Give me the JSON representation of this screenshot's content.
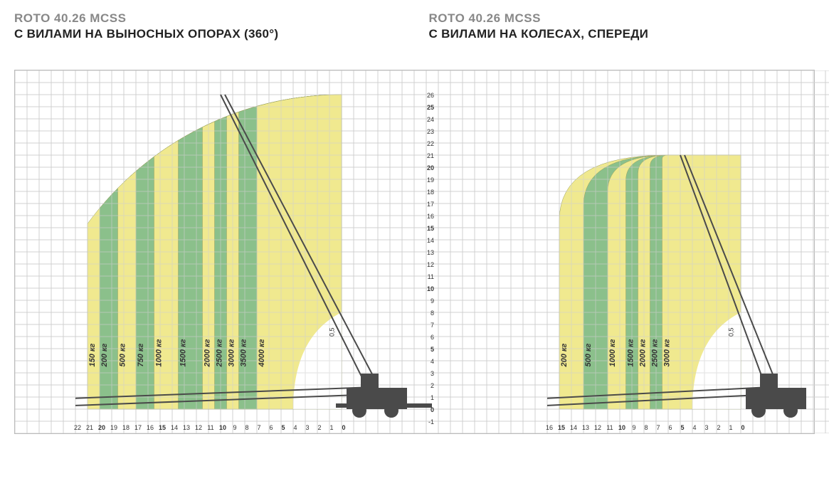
{
  "model": "ROTO 40.26 MCSS",
  "left": {
    "subtitle": "С ВИЛАМИ НА ВЫНОСНЫХ ОПОРАХ (360°)",
    "type": "load-chart",
    "colors": {
      "band_yellow": "#f0e98f",
      "band_green": "#8bc08b",
      "grid": "#d0d0d0",
      "machine": "#4a4a4a",
      "textColor": "#333333",
      "modelColor": "#888888"
    },
    "yAxis": {
      "min": -1,
      "max": 26,
      "boldTicks": [
        0,
        5,
        10,
        15,
        20,
        25
      ]
    },
    "xAxis": {
      "min": 0,
      "max": 22,
      "boldTicks": [
        0,
        5,
        10,
        15,
        20
      ]
    },
    "extra_x_label": "0,5",
    "zones": [
      {
        "label": "150 кг",
        "x": 21,
        "color": "yellow"
      },
      {
        "label": "200 кг",
        "x": 20,
        "color": "green"
      },
      {
        "label": "500 кг",
        "x": 18.5,
        "color": "yellow"
      },
      {
        "label": "750 кг",
        "x": 17,
        "color": "green"
      },
      {
        "label": "1000 кг",
        "x": 15.5,
        "color": "yellow"
      },
      {
        "label": "1500 кг",
        "x": 13.5,
        "color": "green"
      },
      {
        "label": "2000 кг",
        "x": 11.5,
        "color": "yellow"
      },
      {
        "label": "2500 кг",
        "x": 10.5,
        "color": "green"
      },
      {
        "label": "3000 кг",
        "x": 9.5,
        "color": "yellow"
      },
      {
        "label": "3500 кг",
        "x": 8.5,
        "color": "green"
      },
      {
        "label": "4000 кг",
        "x": 7,
        "color": "yellow"
      }
    ],
    "outerArc": {
      "radius": 26,
      "tipX": 0,
      "tipY": 26
    }
  },
  "right": {
    "subtitle": "С ВИЛАМИ НА КОЛЕСАХ, СПЕРЕДИ",
    "type": "load-chart",
    "colors": {
      "band_yellow": "#f0e98f",
      "band_green": "#8bc08b",
      "grid": "#d0d0d0",
      "machine": "#4a4a4a"
    },
    "yAxis": {
      "min": -1,
      "max": 26,
      "boldTicks": [
        0,
        5,
        10,
        15,
        20,
        25
      ]
    },
    "xAxis": {
      "min": 0,
      "max": 16,
      "boldTicks": [
        0,
        5,
        10,
        15
      ]
    },
    "extra_x_label": "0,5",
    "zones": [
      {
        "label": "200 кг",
        "x": 15,
        "color": "yellow"
      },
      {
        "label": "500 кг",
        "x": 13,
        "color": "green"
      },
      {
        "label": "1000 кг",
        "x": 11,
        "color": "yellow"
      },
      {
        "label": "1500 кг",
        "x": 9.5,
        "color": "green"
      },
      {
        "label": "2000 кг",
        "x": 8.5,
        "color": "yellow"
      },
      {
        "label": "2500 кг",
        "x": 7.5,
        "color": "green"
      },
      {
        "label": "3000 кг",
        "x": 6.5,
        "color": "yellow"
      }
    ],
    "topY": 21
  },
  "layout": {
    "cellPx": 17,
    "leftWidthCells": 35,
    "rightWidthCells": 33,
    "heightCells": 30,
    "machineWidthCells": 5
  }
}
